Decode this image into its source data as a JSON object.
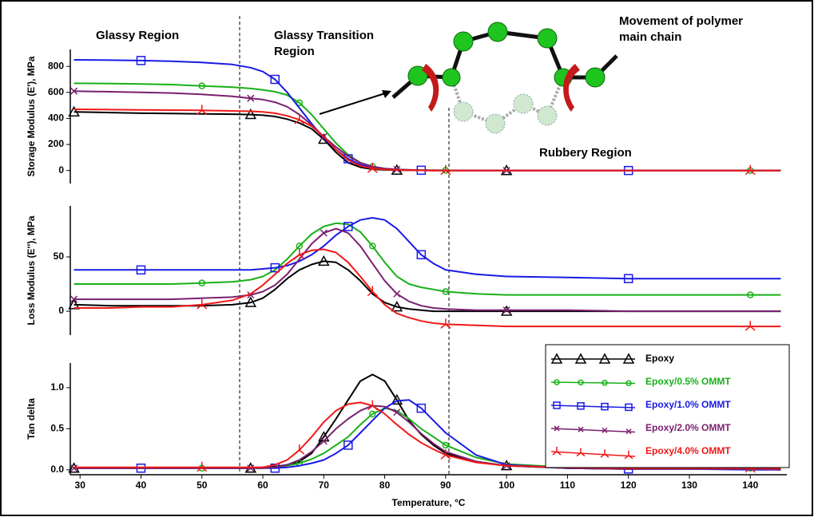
{
  "chart_data": [
    {
      "type": "line",
      "ylabel": "Storage Modulus (E'), MPa",
      "xlim": [
        28.4,
        146
      ],
      "ylim": [
        -100,
        930
      ],
      "yticks": [
        0,
        200,
        400,
        600,
        800
      ],
      "annotations": [
        [
          "Glassy Region"
        ],
        [
          "Glassy Transition",
          "Region"
        ],
        [
          "Rubbery Region"
        ],
        [
          "Movement of polymer",
          "main chain"
        ]
      ],
      "x": [
        29,
        35,
        40,
        45,
        50,
        55,
        58,
        60,
        62,
        64,
        66,
        68,
        70,
        72,
        74,
        76,
        78,
        80,
        82,
        84,
        86,
        88,
        90,
        95,
        100,
        110,
        120,
        130,
        140,
        145
      ],
      "series": [
        {
          "color": "#000000",
          "marker": "triangle",
          "values": [
            450,
            445,
            440,
            438,
            435,
            433,
            430,
            425,
            415,
            395,
            365,
            320,
            240,
            140,
            60,
            25,
            10,
            5,
            3,
            2,
            1,
            0,
            0,
            0,
            0,
            0,
            0,
            0,
            0,
            0
          ]
        },
        {
          "color": "#18b018",
          "marker": "circle",
          "values": [
            670,
            668,
            665,
            660,
            650,
            640,
            630,
            620,
            605,
            580,
            520,
            430,
            320,
            210,
            120,
            60,
            30,
            15,
            8,
            5,
            3,
            2,
            1,
            0,
            0,
            0,
            0,
            0,
            0,
            0
          ]
        },
        {
          "color": "#1a1ae6",
          "marker": "square",
          "values": [
            850,
            848,
            845,
            840,
            830,
            815,
            790,
            760,
            700,
            600,
            480,
            360,
            250,
            160,
            90,
            45,
            20,
            10,
            5,
            3,
            2,
            1,
            1,
            0,
            0,
            0,
            0,
            0,
            0,
            0
          ]
        },
        {
          "color": "#7a1f70",
          "marker": "cross",
          "values": [
            610,
            605,
            600,
            595,
            585,
            570,
            555,
            545,
            525,
            490,
            430,
            350,
            260,
            180,
            110,
            60,
            30,
            15,
            8,
            5,
            3,
            2,
            1,
            0,
            0,
            0,
            0,
            0,
            0,
            0
          ]
        },
        {
          "color": "#f01818",
          "marker": "tripod",
          "values": [
            470,
            468,
            466,
            464,
            462,
            458,
            455,
            450,
            440,
            420,
            390,
            340,
            260,
            160,
            80,
            35,
            15,
            8,
            4,
            2,
            1,
            0,
            0,
            0,
            0,
            0,
            0,
            0,
            0,
            0
          ]
        }
      ]
    },
    {
      "type": "line",
      "ylabel": "Loss Modulus (E''), MPa",
      "xlim": [
        28.4,
        146
      ],
      "ylim": [
        -22,
        97
      ],
      "yticks": [
        0,
        50
      ],
      "x": [
        29,
        35,
        40,
        45,
        50,
        55,
        58,
        60,
        62,
        64,
        66,
        68,
        70,
        72,
        74,
        76,
        78,
        80,
        82,
        84,
        86,
        88,
        90,
        95,
        100,
        110,
        120,
        130,
        140,
        145
      ],
      "series": [
        {
          "color": "#000000",
          "marker": "triangle",
          "values": [
            6,
            5,
            5,
            5,
            5,
            6,
            8,
            12,
            20,
            30,
            38,
            43,
            46,
            45,
            38,
            28,
            16,
            8,
            4,
            2,
            1,
            0,
            0,
            0,
            0,
            0,
            0,
            0,
            0,
            0
          ]
        },
        {
          "color": "#18b018",
          "marker": "circle",
          "values": [
            25,
            25,
            25,
            25,
            26,
            27,
            29,
            32,
            38,
            48,
            60,
            71,
            78,
            81,
            80,
            73,
            60,
            45,
            32,
            25,
            22,
            20,
            18,
            16,
            15,
            15,
            15,
            15,
            15,
            15
          ]
        },
        {
          "color": "#1a1ae6",
          "marker": "square",
          "values": [
            38,
            38,
            38,
            38,
            38,
            38,
            38,
            39,
            40,
            42,
            46,
            52,
            60,
            70,
            78,
            84,
            86,
            84,
            76,
            64,
            52,
            44,
            38,
            34,
            32,
            31,
            30,
            30,
            30,
            30
          ]
        },
        {
          "color": "#7a1f70",
          "marker": "cross",
          "values": [
            11,
            11,
            11,
            11,
            12,
            13,
            15,
            18,
            24,
            34,
            48,
            62,
            72,
            76,
            72,
            60,
            44,
            28,
            16,
            9,
            5,
            3,
            2,
            1,
            1,
            1,
            0,
            0,
            0,
            0
          ]
        },
        {
          "color": "#f01818",
          "marker": "tripod",
          "values": [
            3,
            3,
            4,
            4,
            6,
            10,
            16,
            24,
            34,
            44,
            52,
            56,
            57,
            54,
            45,
            32,
            18,
            6,
            -2,
            -6,
            -9,
            -11,
            -12,
            -13,
            -14,
            -14,
            -14,
            -14,
            -14,
            -14
          ]
        }
      ]
    },
    {
      "type": "line",
      "ylabel": "Tan delta",
      "xlabel": "Temperature, °C",
      "xlim": [
        28.4,
        146
      ],
      "ylim": [
        -0.06,
        1.3
      ],
      "xticks": [
        30,
        40,
        50,
        60,
        70,
        80,
        90,
        100,
        110,
        120,
        130,
        140
      ],
      "yticks": [
        {
          "value": 0,
          "label": "0.0"
        },
        0.5,
        {
          "value": 1,
          "label": "1.0"
        }
      ],
      "x": [
        29,
        35,
        40,
        45,
        50,
        55,
        58,
        60,
        62,
        64,
        66,
        68,
        70,
        72,
        74,
        76,
        78,
        80,
        82,
        84,
        86,
        88,
        90,
        95,
        100,
        110,
        120,
        130,
        140,
        145
      ],
      "series": [
        {
          "name": "Epoxy",
          "color": "#000000",
          "marker": "triangle",
          "values": [
            0.02,
            0.02,
            0.02,
            0.02,
            0.02,
            0.02,
            0.02,
            0.03,
            0.04,
            0.06,
            0.1,
            0.2,
            0.4,
            0.62,
            0.85,
            1.08,
            1.16,
            1.08,
            0.85,
            0.6,
            0.43,
            0.3,
            0.2,
            0.1,
            0.05,
            0.02,
            0.01,
            0.01,
            0.01,
            0.01
          ]
        },
        {
          "name": "Epoxy/0.5% OMMT",
          "color": "#18b018",
          "marker": "circle",
          "values": [
            0.02,
            0.02,
            0.02,
            0.02,
            0.02,
            0.02,
            0.02,
            0.02,
            0.03,
            0.05,
            0.08,
            0.13,
            0.2,
            0.3,
            0.4,
            0.55,
            0.68,
            0.75,
            0.72,
            0.62,
            0.5,
            0.4,
            0.3,
            0.15,
            0.07,
            0.03,
            0.02,
            0.02,
            0.02,
            0.02
          ]
        },
        {
          "name": "Epoxy/1.0% OMMT",
          "color": "#1a1ae6",
          "marker": "square",
          "values": [
            0.02,
            0.02,
            0.02,
            0.02,
            0.02,
            0.02,
            0.02,
            0.02,
            0.02,
            0.03,
            0.05,
            0.08,
            0.12,
            0.2,
            0.3,
            0.45,
            0.6,
            0.75,
            0.84,
            0.85,
            0.75,
            0.6,
            0.45,
            0.18,
            0.06,
            0.02,
            0.01,
            0.01,
            0,
            0
          ]
        },
        {
          "name": "Epoxy/2.0% OMMT",
          "color": "#7a1f70",
          "marker": "cross",
          "values": [
            0.02,
            0.02,
            0.02,
            0.02,
            0.02,
            0.02,
            0.02,
            0.02,
            0.03,
            0.06,
            0.12,
            0.22,
            0.35,
            0.5,
            0.62,
            0.72,
            0.78,
            0.77,
            0.7,
            0.58,
            0.44,
            0.32,
            0.22,
            0.1,
            0.05,
            0.02,
            0.01,
            0.01,
            0.01,
            0
          ]
        },
        {
          "name": "Epoxy/4.0% OMMT",
          "color": "#f01818",
          "marker": "tripod",
          "values": [
            0.03,
            0.03,
            0.03,
            0.03,
            0.03,
            0.03,
            0.03,
            0.03,
            0.06,
            0.12,
            0.24,
            0.4,
            0.58,
            0.72,
            0.8,
            0.82,
            0.78,
            0.68,
            0.55,
            0.43,
            0.33,
            0.25,
            0.18,
            0.09,
            0.05,
            0.03,
            0.02,
            0.02,
            0.02,
            0.02
          ]
        }
      ]
    }
  ]
}
